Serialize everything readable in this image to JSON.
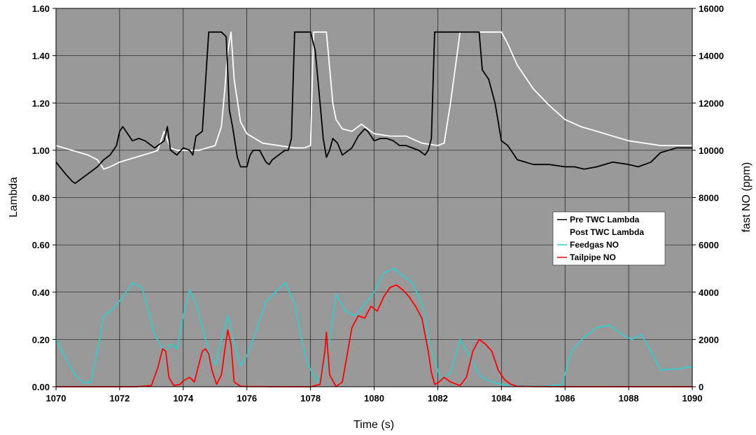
{
  "chart_data": {
    "type": "line",
    "title": "",
    "xlabel": "Time (s)",
    "ylabel": "Lambda",
    "y2label": "fast NO (ppm)",
    "xlim": [
      1070,
      1090
    ],
    "ylim": [
      0,
      1.6
    ],
    "y2lim": [
      0,
      16000
    ],
    "x_ticks": [
      "1070",
      "1072",
      "1074",
      "1076",
      "1078",
      "1080",
      "1082",
      "1084",
      "1086",
      "1088",
      "1090"
    ],
    "y_ticks": [
      "0.00",
      "0.20",
      "0.40",
      "0.60",
      "0.80",
      "1.00",
      "1.20",
      "1.40",
      "1.60"
    ],
    "y2_ticks": [
      "0",
      "2000",
      "4000",
      "6000",
      "8000",
      "10000",
      "12000",
      "14000",
      "16000"
    ],
    "grid": true,
    "plot_background": "#999999",
    "legend_position": "right-center",
    "legend_background": "#ffffff",
    "series": [
      {
        "name": "Pre TWC Lambda",
        "axis": "left",
        "color": "#000000",
        "x": [
          1070,
          1070.3,
          1070.5,
          1070.6,
          1070.8,
          1071,
          1071.3,
          1071.5,
          1071.7,
          1071.9,
          1072,
          1072.1,
          1072.2,
          1072.4,
          1072.6,
          1072.8,
          1073,
          1073.1,
          1073.2,
          1073.4,
          1073.5,
          1073.6,
          1073.8,
          1074,
          1074.2,
          1074.3,
          1074.4,
          1074.6,
          1074.8,
          1075,
          1075.2,
          1075.35,
          1075.45,
          1075.55,
          1075.7,
          1075.8,
          1076,
          1076.1,
          1076.2,
          1076.4,
          1076.6,
          1076.7,
          1076.8,
          1077,
          1077.2,
          1077.3,
          1077.4,
          1077.5,
          1077.65,
          1077.75,
          1078,
          1078.15,
          1078.3,
          1078.4,
          1078.5,
          1078.6,
          1078.7,
          1078.85,
          1079,
          1079.1,
          1079.3,
          1079.5,
          1079.7,
          1079.8,
          1080,
          1080.2,
          1080.4,
          1080.6,
          1080.8,
          1081,
          1081.2,
          1081.4,
          1081.6,
          1081.7,
          1081.8,
          1081.9,
          1082,
          1082.5,
          1082.7,
          1082.9,
          1083.3,
          1083.4,
          1083.6,
          1083.8,
          1084,
          1084.2,
          1084.5,
          1085,
          1085.5,
          1086,
          1086.3,
          1086.6,
          1087,
          1087.5,
          1088,
          1088.3,
          1088.7,
          1089,
          1089.5,
          1090
        ],
        "y": [
          0.95,
          0.9,
          0.87,
          0.86,
          0.88,
          0.9,
          0.93,
          0.96,
          0.98,
          1.02,
          1.08,
          1.1,
          1.08,
          1.04,
          1.05,
          1.04,
          1.02,
          1.01,
          1.02,
          1.04,
          1.1,
          1.0,
          0.98,
          1.01,
          1.0,
          0.98,
          1.06,
          1.08,
          1.5,
          1.5,
          1.5,
          1.48,
          1.17,
          1.1,
          0.97,
          0.93,
          0.93,
          0.98,
          1.0,
          1.0,
          0.95,
          0.94,
          0.96,
          0.98,
          1.0,
          1.0,
          1.05,
          1.5,
          1.5,
          1.5,
          1.5,
          1.42,
          1.2,
          1.05,
          0.97,
          1.0,
          1.05,
          1.03,
          0.98,
          0.99,
          1.01,
          1.06,
          1.09,
          1.08,
          1.04,
          1.05,
          1.05,
          1.04,
          1.02,
          1.02,
          1.01,
          1.0,
          0.98,
          1.0,
          1.05,
          1.5,
          1.5,
          1.5,
          1.5,
          1.5,
          1.5,
          1.34,
          1.3,
          1.2,
          1.04,
          1.02,
          0.96,
          0.94,
          0.94,
          0.93,
          0.93,
          0.92,
          0.93,
          0.95,
          0.94,
          0.93,
          0.95,
          0.99,
          1.01,
          1.01
        ]
      },
      {
        "name": "Post TWC Lambda",
        "axis": "left",
        "color": "#ffffff",
        "x": [
          1070,
          1070.5,
          1071,
          1071.3,
          1071.5,
          1071.7,
          1072,
          1072.5,
          1073,
          1073.2,
          1073.4,
          1073.6,
          1073.8,
          1074,
          1074.5,
          1075,
          1075.2,
          1075.3,
          1075.4,
          1075.5,
          1075.6,
          1075.8,
          1076,
          1076.5,
          1077,
          1077.5,
          1077.8,
          1078,
          1078.1,
          1078.2,
          1078.5,
          1078.6,
          1078.7,
          1078.8,
          1079,
          1079.3,
          1079.6,
          1080,
          1080.5,
          1081,
          1081.5,
          1082,
          1082.2,
          1082.4,
          1082.6,
          1082.7,
          1083,
          1083.5,
          1084,
          1084.2,
          1084.5,
          1085,
          1085.5,
          1086,
          1086.5,
          1087,
          1087.5,
          1088,
          1088.5,
          1089,
          1089.5,
          1090
        ],
        "y": [
          1.02,
          1.0,
          0.98,
          0.96,
          0.92,
          0.93,
          0.95,
          0.97,
          0.99,
          1.0,
          1.08,
          1.01,
          1.0,
          1.0,
          1.0,
          1.02,
          1.1,
          1.25,
          1.42,
          1.5,
          1.3,
          1.12,
          1.07,
          1.03,
          1.02,
          1.01,
          1.01,
          1.02,
          1.5,
          1.5,
          1.5,
          1.35,
          1.2,
          1.13,
          1.09,
          1.08,
          1.11,
          1.07,
          1.06,
          1.06,
          1.03,
          1.02,
          1.03,
          1.2,
          1.4,
          1.5,
          1.5,
          1.5,
          1.5,
          1.45,
          1.36,
          1.26,
          1.19,
          1.13,
          1.1,
          1.08,
          1.06,
          1.04,
          1.03,
          1.02,
          1.02,
          1.02
        ]
      },
      {
        "name": "Feedgas NO",
        "axis": "right",
        "color": "#33cccc",
        "x": [
          1070,
          1070.3,
          1070.6,
          1070.9,
          1071.1,
          1071.3,
          1071.5,
          1071.8,
          1072.1,
          1072.4,
          1072.7,
          1072.9,
          1073.1,
          1073.4,
          1073.6,
          1073.8,
          1074,
          1074.2,
          1074.4,
          1074.6,
          1074.8,
          1075,
          1075.2,
          1075.4,
          1075.6,
          1075.8,
          1076,
          1076.3,
          1076.6,
          1076.9,
          1077.2,
          1077.5,
          1077.7,
          1077.9,
          1078.2,
          1078.5,
          1078.8,
          1079.1,
          1079.4,
          1079.7,
          1080,
          1080.3,
          1080.6,
          1080.9,
          1081.2,
          1081.5,
          1081.8,
          1082.1,
          1082.4,
          1082.7,
          1083,
          1083.3,
          1083.6,
          1084,
          1084.5,
          1085,
          1085.5,
          1085.9,
          1086.2,
          1086.6,
          1087,
          1087.4,
          1087.8,
          1088.1,
          1088.4,
          1088.7,
          1089,
          1089.5,
          1090
        ],
        "y": [
          2000,
          1200,
          500,
          150,
          200,
          1500,
          3000,
          3300,
          3800,
          4400,
          4200,
          3200,
          2200,
          1500,
          1800,
          1600,
          3000,
          4100,
          3500,
          2500,
          1500,
          900,
          2000,
          3000,
          1800,
          900,
          1300,
          2400,
          3600,
          4000,
          4400,
          3500,
          2100,
          1000,
          200,
          1000,
          3900,
          3200,
          3000,
          3500,
          4000,
          4800,
          5000,
          4700,
          4400,
          3500,
          1500,
          300,
          600,
          2000,
          1300,
          500,
          250,
          100,
          50,
          30,
          30,
          100,
          1500,
          2100,
          2500,
          2600,
          2200,
          2000,
          2200,
          1500,
          700,
          750,
          850
        ]
      },
      {
        "name": "Tailpipe NO",
        "axis": "right",
        "color": "#ff0000",
        "x": [
          1070,
          1071,
          1072,
          1072.5,
          1073,
          1073.2,
          1073.35,
          1073.45,
          1073.55,
          1073.7,
          1073.9,
          1074,
          1074.2,
          1074.35,
          1074.5,
          1074.6,
          1074.7,
          1074.8,
          1074.9,
          1075.05,
          1075.2,
          1075.3,
          1075.4,
          1075.5,
          1075.6,
          1075.8,
          1076,
          1077,
          1078,
          1078.3,
          1078.45,
          1078.5,
          1078.6,
          1078.8,
          1079,
          1079.3,
          1079.5,
          1079.7,
          1079.9,
          1080.1,
          1080.3,
          1080.5,
          1080.7,
          1080.9,
          1081.1,
          1081.3,
          1081.5,
          1081.7,
          1081.8,
          1081.9,
          1082,
          1082.2,
          1082.4,
          1082.7,
          1082.9,
          1083.1,
          1083.3,
          1083.5,
          1083.7,
          1083.9,
          1084.1,
          1084.3,
          1084.5,
          1085,
          1086,
          1087,
          1088,
          1089,
          1090
        ],
        "y": [
          0,
          0,
          0,
          0,
          50,
          800,
          1600,
          1500,
          400,
          50,
          100,
          250,
          400,
          200,
          1000,
          1500,
          1600,
          1400,
          700,
          100,
          500,
          1500,
          2400,
          1800,
          200,
          20,
          10,
          0,
          0,
          100,
          1500,
          2300,
          500,
          10,
          200,
          2500,
          3000,
          2900,
          3400,
          3200,
          3800,
          4200,
          4300,
          4100,
          3800,
          3400,
          2900,
          1500,
          600,
          100,
          150,
          400,
          200,
          50,
          400,
          1500,
          2000,
          1800,
          1500,
          700,
          300,
          100,
          20,
          10,
          0,
          0,
          0,
          0,
          0
        ]
      }
    ]
  }
}
